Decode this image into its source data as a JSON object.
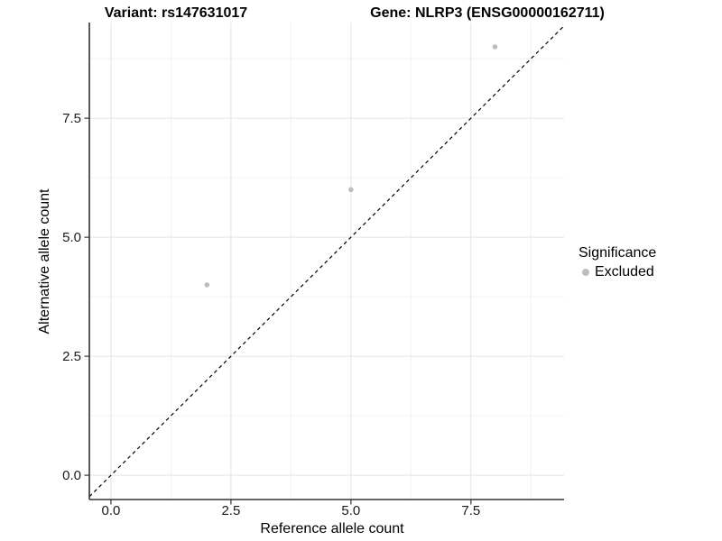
{
  "chart_data": {
    "type": "scatter",
    "title_left": "Variant: rs147631017",
    "title_right": "Gene: NLRP3 (ENSG00000162711)",
    "xlabel": "Reference allele count",
    "ylabel": "Alternative allele count",
    "xlim": [
      -0.45,
      9.44
    ],
    "ylim": [
      -0.51,
      9.51
    ],
    "x_ticks": {
      "values": [
        0,
        2.5,
        5,
        7.5
      ],
      "labels": [
        "0.0",
        "2.5",
        "5.0",
        "7.5"
      ]
    },
    "y_ticks": {
      "values": [
        0,
        2.5,
        5,
        7.5
      ],
      "labels": [
        "0.0",
        "2.5",
        "5.0",
        "7.5"
      ]
    },
    "minor_gridlines": [
      1.25,
      3.75,
      6.25,
      8.75
    ],
    "grid": true,
    "series": [
      {
        "name": "Excluded",
        "color": "#bebebe",
        "points": [
          {
            "x": 2,
            "y": 4
          },
          {
            "x": 5,
            "y": 6
          },
          {
            "x": 8,
            "y": 9
          }
        ]
      }
    ],
    "reference_line": {
      "equation": "y = x",
      "style": "dashed",
      "color": "#000000"
    },
    "legend": {
      "title": "Significance",
      "position": "right",
      "entries": [
        {
          "label": "Excluded",
          "color": "#bebebe",
          "marker": "circle"
        }
      ]
    },
    "colors": {
      "grid_major": "#e4e4e4",
      "grid_minor": "#f2f2f2",
      "axis_line": "#333333",
      "background": "#ffffff"
    }
  }
}
